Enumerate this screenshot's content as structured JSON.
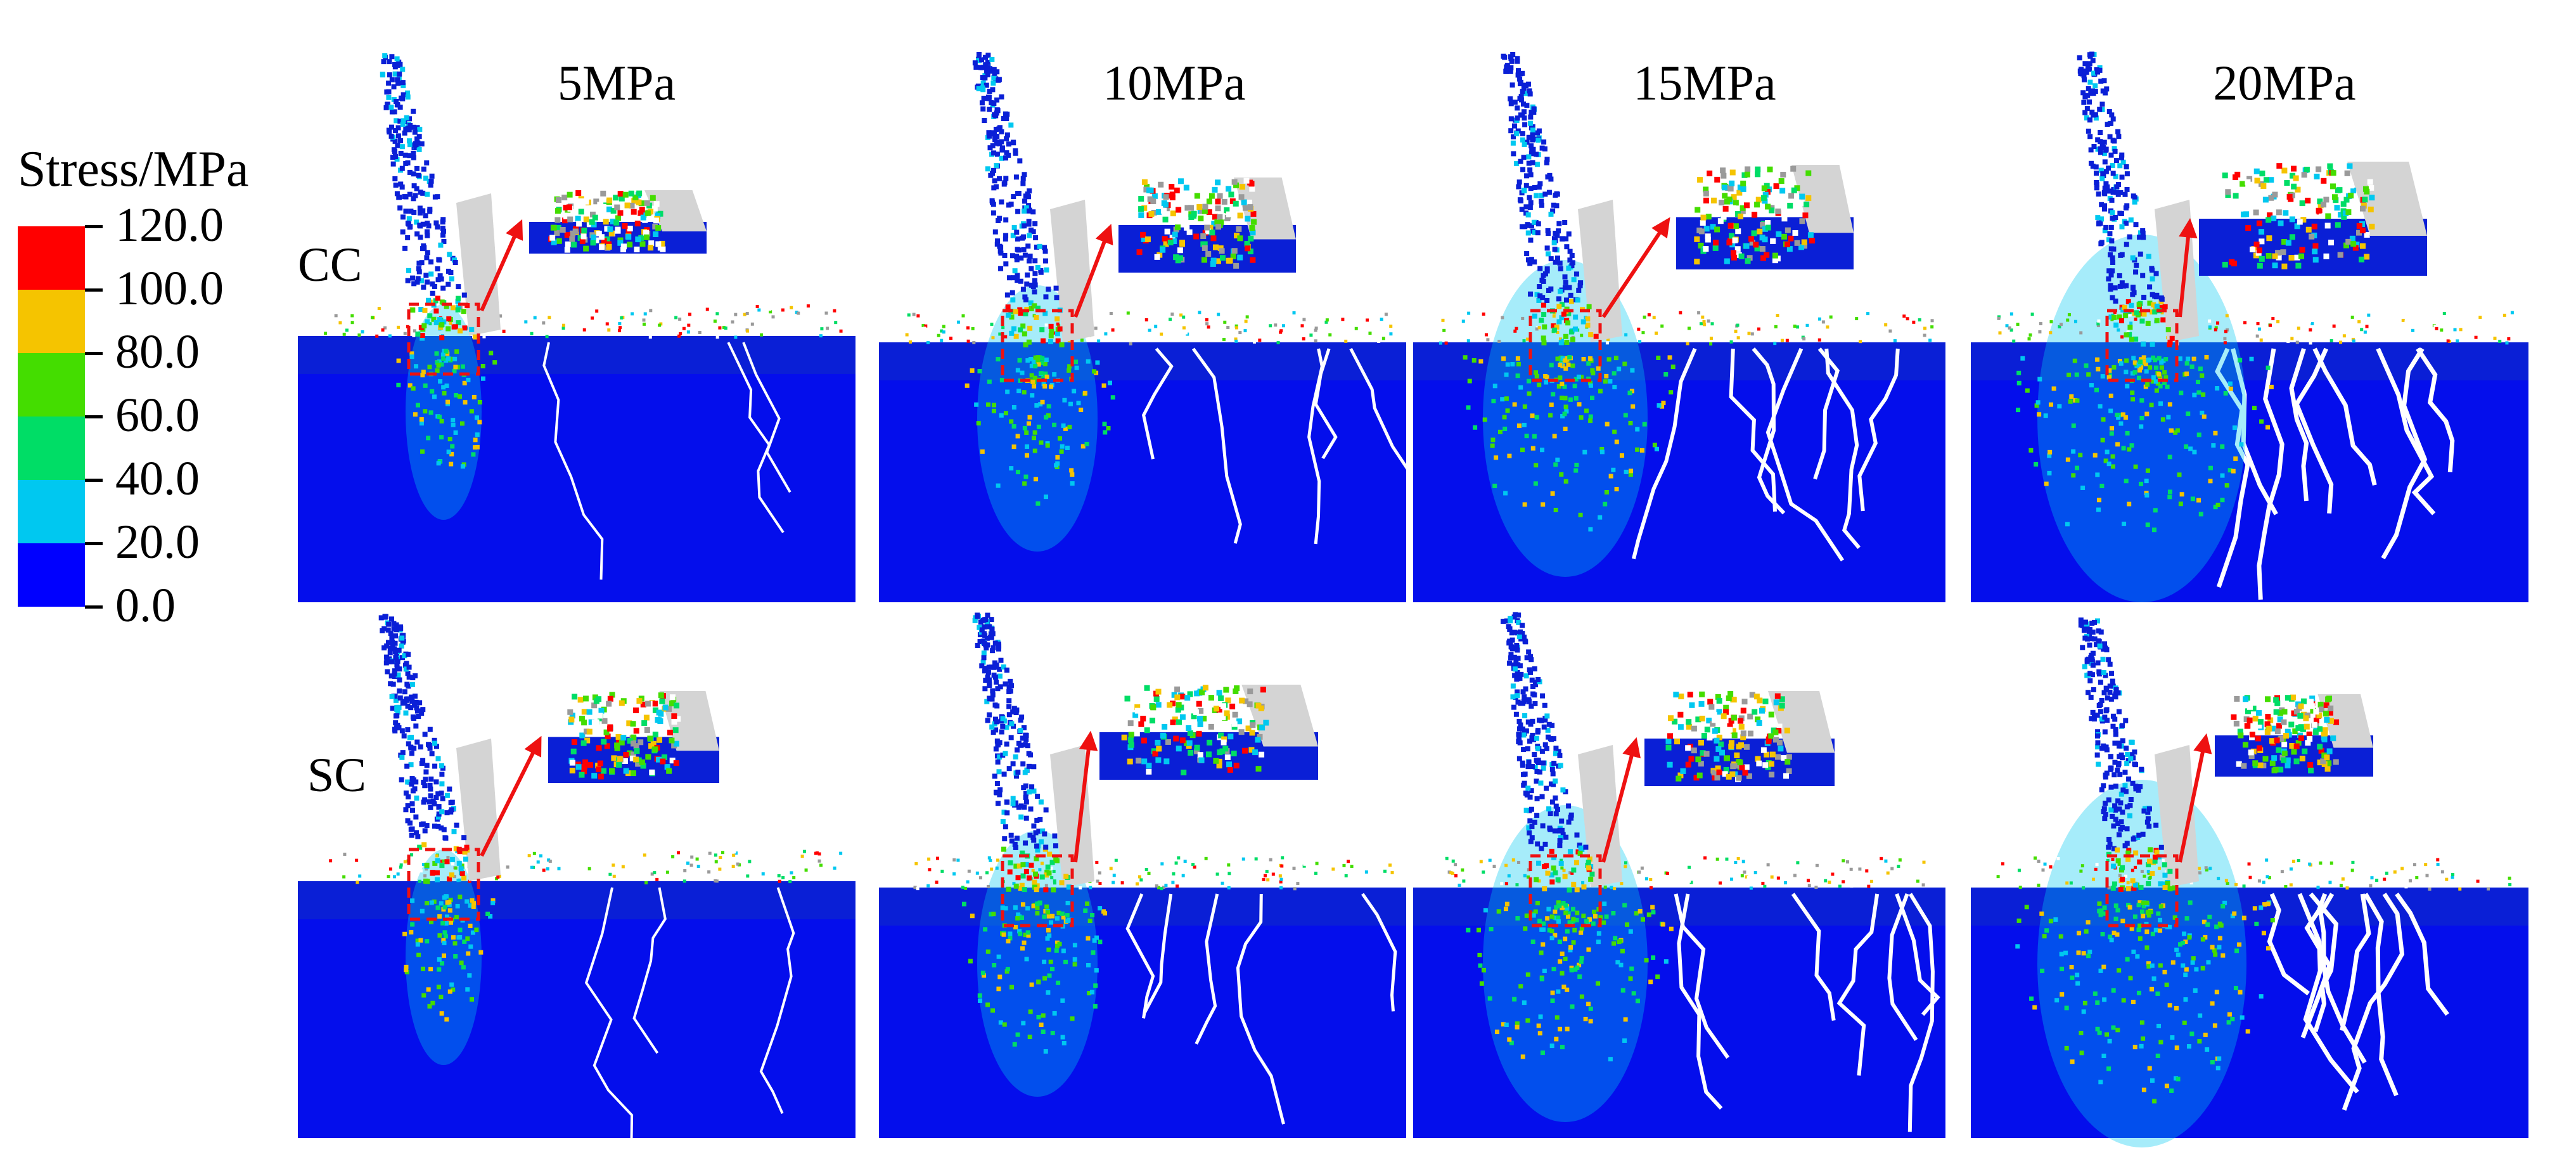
{
  "legend": {
    "title": "Stress/MPa",
    "ticks": [
      "120.0",
      "100.0",
      "80.0",
      "60.0",
      "40.0",
      "20.0",
      "0.0"
    ],
    "colors": [
      "#ff0000",
      "#f5c400",
      "#44dd00",
      "#00dd66",
      "#00c8f0",
      "#0000ff"
    ]
  },
  "pressures": [
    "5MPa",
    "10MPa",
    "15MPa",
    "20MPa"
  ],
  "rows": [
    "CC",
    "SC"
  ],
  "colors": {
    "rock": "#0a1fd6",
    "rock_deep": "#0000ff",
    "fracture": "#ffffff",
    "drill_bit": "#d4d4d4",
    "marker": "#ee1111"
  }
}
